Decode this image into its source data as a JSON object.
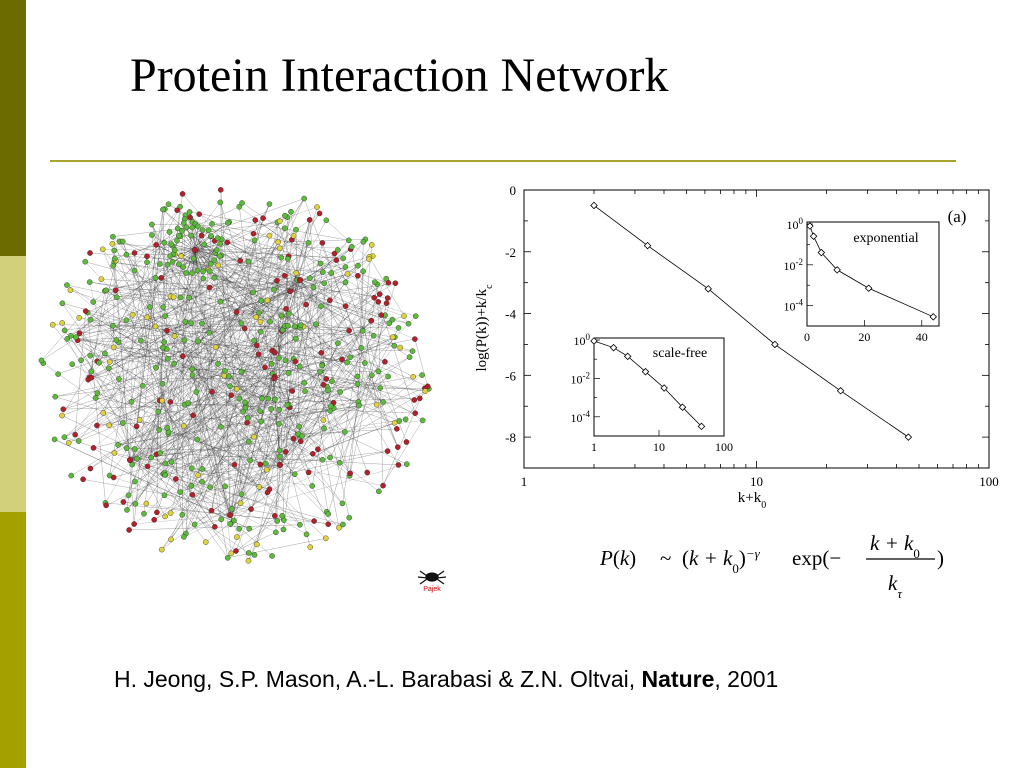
{
  "slide": {
    "title": "Protein Interaction Network",
    "citation": {
      "authors": "H. Jeong, S.P. Mason, A.-L. Barabasi & Z.N. Oltvai, ",
      "journal": "Nature",
      "year_suffix": ", 2001"
    },
    "logo_text": "Pajek",
    "colors": {
      "sidebar_dark": "#6b6b00",
      "sidebar_light": "#d2d07a",
      "sidebar_mid": "#a3a000",
      "rule": "#a8a32a",
      "node_green": "#5dbb3a",
      "node_red": "#b3202a",
      "node_yellow": "#e0d33a"
    }
  },
  "formula": {
    "lhs": "P",
    "lhs_arg": "k",
    "tilde": "~",
    "base": "k + k",
    "base_sub": "0",
    "exponent": "−γ",
    "exp_text": "exp(−",
    "num": "k + k",
    "num_sub": "0",
    "den": "k",
    "den_sub": "τ",
    "close": ")"
  },
  "chart_data": [
    {
      "type": "line",
      "panel": "(a)",
      "xlabel": "k+k",
      "xlabel_sub": "0",
      "ylabel": "log(P(k))+k/k",
      "ylabel_sub": "c",
      "xscale": "log",
      "xlim": [
        1,
        100
      ],
      "ylim": [
        -9,
        0
      ],
      "x_ticks": [
        "1",
        "10",
        "100"
      ],
      "y_ticks": [
        "0",
        "-2",
        "-4",
        "-6",
        "-8"
      ],
      "series": [
        {
          "x": [
            2,
            3.4,
            6.2,
            12,
            23,
            45
          ],
          "y": [
            -0.5,
            -1.8,
            -3.2,
            -5.0,
            -6.5,
            -8.0
          ]
        }
      ]
    },
    {
      "type": "line",
      "inset": "scale-free",
      "xscale": "log",
      "yscale": "log",
      "xlim": [
        1,
        100
      ],
      "ylim_exp": [
        -5,
        0
      ],
      "x_ticks": [
        "1",
        "10",
        "100"
      ],
      "y_ticks": [
        {
          "base": "10",
          "exp": "0"
        },
        {
          "base": "10",
          "exp": "-2"
        },
        {
          "base": "10",
          "exp": "-4"
        }
      ],
      "series": [
        {
          "x": [
            1,
            2,
            3.3,
            6.2,
            12,
            23,
            45
          ],
          "y_exp": [
            -0.05,
            -0.4,
            -0.85,
            -1.65,
            -2.5,
            -3.5,
            -4.5
          ]
        }
      ]
    },
    {
      "type": "line",
      "inset": "exponential",
      "xscale": "linear",
      "yscale": "log",
      "xlim": [
        0,
        46
      ],
      "ylim_exp": [
        -5,
        0
      ],
      "x_ticks": [
        "0",
        "20",
        "40"
      ],
      "y_ticks": [
        {
          "base": "10",
          "exp": "0"
        },
        {
          "base": "10",
          "exp": "-2"
        },
        {
          "base": "10",
          "exp": "-4"
        }
      ],
      "series": [
        {
          "x": [
            1,
            2.3,
            5,
            10.5,
            21.5,
            44
          ],
          "y_exp": [
            -0.1,
            -0.6,
            -1.4,
            -2.25,
            -3.15,
            -4.55
          ]
        }
      ]
    }
  ]
}
